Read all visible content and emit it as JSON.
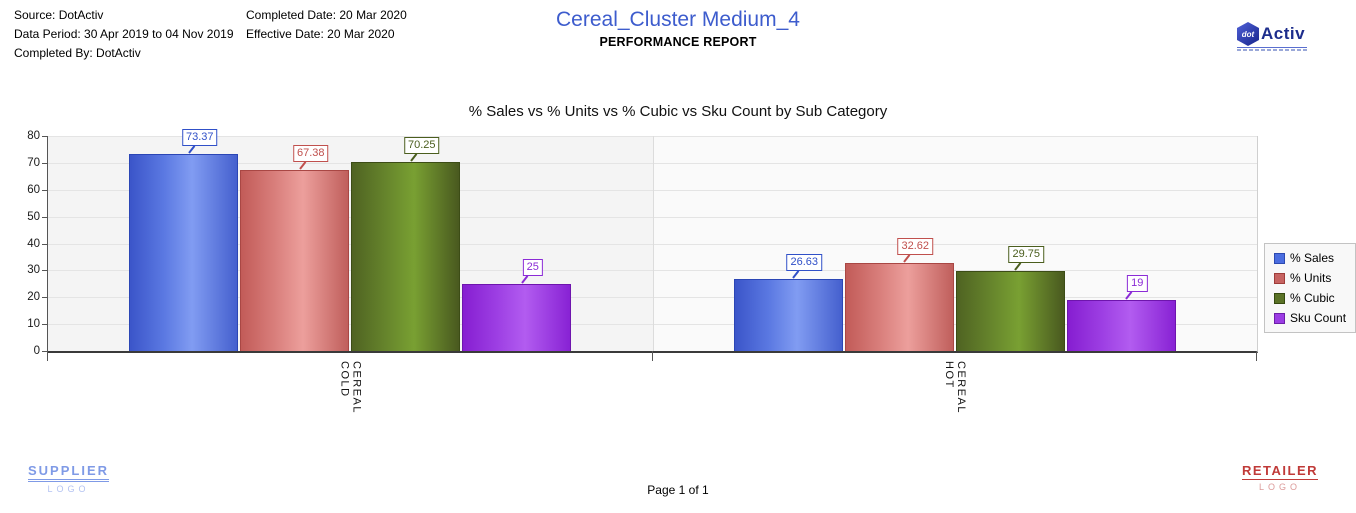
{
  "header": {
    "source": "Source: DotActiv",
    "data_period": "Data Period: 30 Apr 2019 to 04 Nov 2019",
    "completed_by": "Completed By: DotActiv",
    "completed_date": "Completed Date: 20 Mar 2020",
    "effective_date": "Effective Date: 20 Mar 2020",
    "title": "Cereal_Cluster Medium_4",
    "subtitle": "PERFORMANCE REPORT",
    "title_color": "#3d5ccd"
  },
  "logo": {
    "hex_text": "dot",
    "brand_text": "Activ"
  },
  "chart_data": {
    "type": "bar",
    "title": "% Sales vs % Units vs % Cubic vs Sku Count by Sub Category",
    "categories": [
      "CEREAL COLD",
      "CEREAL HOT"
    ],
    "series": [
      {
        "name": "% Sales",
        "values": [
          73.37,
          26.63
        ],
        "border": "#2b46b5",
        "label_color": "#3050c8",
        "gradient": [
          "#3b55c9",
          "#5b79e2",
          "#819cf2",
          "#4560ce"
        ],
        "legend_fill": "#4a6de0",
        "legend_border": "#2d49b0"
      },
      {
        "name": "% Units",
        "values": [
          67.38,
          32.62
        ],
        "border": "#a94744",
        "label_color": "#c0504d",
        "gradient": [
          "#c25b58",
          "#d97f7c",
          "#ec9f9c",
          "#c05f5c"
        ],
        "legend_fill": "#c66361",
        "legend_border": "#9e3d3a"
      },
      {
        "name": "% Cubic",
        "values": [
          70.25,
          29.75
        ],
        "border": "#3c4c16",
        "label_color": "#4b5e1e",
        "gradient": [
          "#4f6322",
          "#66852c",
          "#79a032",
          "#49591f"
        ],
        "legend_fill": "#5a7226",
        "legend_border": "#36490f"
      },
      {
        "name": "Sku Count",
        "values": [
          25,
          19
        ],
        "border": "#6e15ad",
        "label_color": "#8b2bd6",
        "gradient": [
          "#861ed1",
          "#9d3fe3",
          "#b25cf0",
          "#8822d4"
        ],
        "legend_fill": "#9b3ce4",
        "legend_border": "#6c1fa8"
      }
    ],
    "ylim": [
      0,
      80
    ],
    "ytick_step": 10,
    "grid": true,
    "legend_position": "right"
  },
  "footer": {
    "supplier_name": "SUPPLIER",
    "supplier_sub": "LOGO",
    "retailer_name": "RETAILER",
    "retailer_sub": "LOGO",
    "page": "Page 1 of 1"
  }
}
